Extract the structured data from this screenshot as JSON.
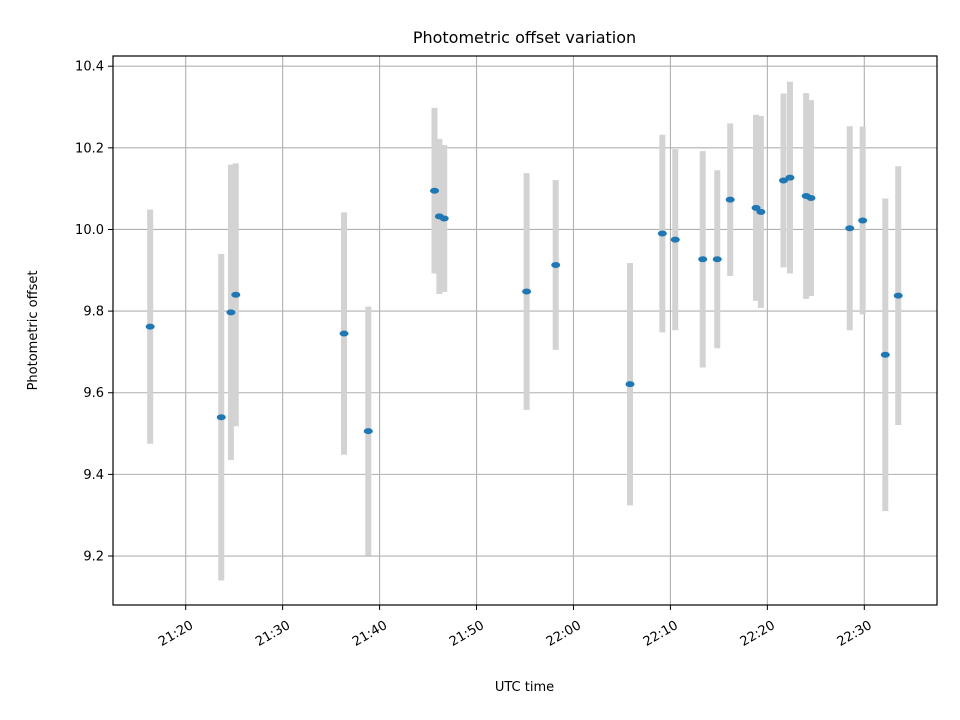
{
  "chart_data": {
    "type": "scatter",
    "title": "Photometric offset variation",
    "xlabel": "UTC time",
    "ylabel": "Photometric offset",
    "grid": true,
    "xlim": [
      "21:12:30",
      "22:37:30"
    ],
    "ylim": [
      9.08,
      10.425
    ],
    "x_ticks": [
      "21:20",
      "21:30",
      "21:40",
      "21:50",
      "22:00",
      "22:10",
      "22:20",
      "22:30"
    ],
    "y_ticks": [
      "9.2",
      "9.4",
      "9.6",
      "9.8",
      "10.0",
      "10.2",
      "10.4"
    ],
    "series": [
      {
        "marker_color": "#1f77b4",
        "errorbar_color": "#d3d3d3",
        "points": [
          {
            "t": "21:16:20",
            "y": 9.762,
            "err": 0.287
          },
          {
            "t": "21:23:40",
            "y": 9.54,
            "err": 0.4
          },
          {
            "t": "21:24:40",
            "y": 9.797,
            "err": 0.362
          },
          {
            "t": "21:25:10",
            "y": 9.84,
            "err": 0.322
          },
          {
            "t": "21:36:20",
            "y": 9.745,
            "err": 0.297
          },
          {
            "t": "21:38:50",
            "y": 9.506,
            "err": 0.305
          },
          {
            "t": "21:45:40",
            "y": 10.095,
            "err": 0.203
          },
          {
            "t": "21:46:10",
            "y": 10.032,
            "err": 0.19
          },
          {
            "t": "21:46:40",
            "y": 10.027,
            "err": 0.18
          },
          {
            "t": "21:55:10",
            "y": 9.848,
            "err": 0.29
          },
          {
            "t": "21:58:10",
            "y": 9.913,
            "err": 0.208
          },
          {
            "t": "22:05:50",
            "y": 9.621,
            "err": 0.297
          },
          {
            "t": "22:09:10",
            "y": 9.99,
            "err": 0.242
          },
          {
            "t": "22:10:30",
            "y": 9.975,
            "err": 0.222
          },
          {
            "t": "22:13:20",
            "y": 9.927,
            "err": 0.265
          },
          {
            "t": "22:14:50",
            "y": 9.927,
            "err": 0.218
          },
          {
            "t": "22:16:10",
            "y": 10.073,
            "err": 0.187
          },
          {
            "t": "22:18:50",
            "y": 10.053,
            "err": 0.228
          },
          {
            "t": "22:19:20",
            "y": 10.043,
            "err": 0.235
          },
          {
            "t": "22:21:40",
            "y": 10.12,
            "err": 0.213
          },
          {
            "t": "22:22:20",
            "y": 10.127,
            "err": 0.235
          },
          {
            "t": "22:24:00",
            "y": 10.082,
            "err": 0.252
          },
          {
            "t": "22:24:30",
            "y": 10.077,
            "err": 0.24
          },
          {
            "t": "22:28:30",
            "y": 10.003,
            "err": 0.25
          },
          {
            "t": "22:29:50",
            "y": 10.022,
            "err": 0.23
          },
          {
            "t": "22:32:10",
            "y": 9.693,
            "err": 0.383
          },
          {
            "t": "22:33:30",
            "y": 9.838,
            "err": 0.317
          }
        ]
      }
    ]
  }
}
